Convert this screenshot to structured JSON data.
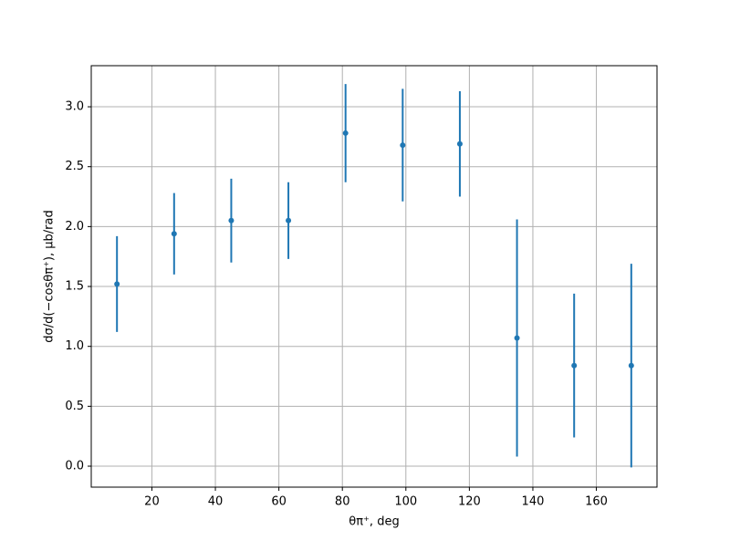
{
  "chart_data": {
    "type": "errorbar",
    "xlabel": "θπ⁺, deg",
    "ylabel": "dσ/d(−cosθπ⁺), μb/rad",
    "x": [
      9,
      27,
      45,
      63,
      81,
      99,
      117,
      135,
      153,
      171
    ],
    "series": [
      {
        "color": "#1f77b4",
        "values": [
          1.52,
          1.94,
          2.05,
          2.05,
          2.78,
          2.68,
          2.69,
          1.07,
          0.84,
          0.84
        ],
        "errors": [
          0.4,
          0.34,
          0.35,
          0.32,
          0.41,
          0.47,
          0.44,
          0.99,
          0.6,
          0.85
        ]
      }
    ],
    "xlim": [
      0.9,
      179.1
    ],
    "ylim": [
      -0.175,
      3.343
    ],
    "xticks": [
      20,
      40,
      60,
      80,
      100,
      120,
      140,
      160
    ],
    "yticks": [
      {
        "value": 0,
        "label": "0.0"
      },
      0.5,
      {
        "value": 1,
        "label": "1.0"
      },
      1.5,
      {
        "value": 2,
        "label": "2.0"
      },
      2.5,
      {
        "value": 3,
        "label": "3.0"
      }
    ],
    "grid": true
  }
}
